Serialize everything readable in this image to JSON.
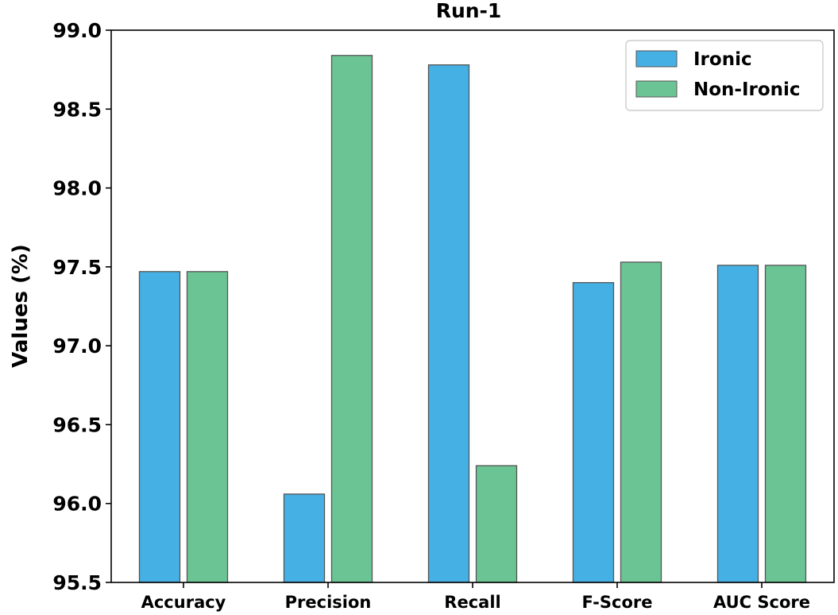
{
  "chart_data": {
    "type": "bar",
    "title": "Run-1",
    "xlabel": "",
    "ylabel": "Values (%)",
    "categories": [
      "Accuracy",
      "Precision",
      "Recall",
      "F-Score",
      "AUC Score"
    ],
    "series": [
      {
        "name": "Ironic",
        "color": "#45b0e3",
        "values": [
          97.47,
          96.06,
          98.78,
          97.4,
          97.51
        ]
      },
      {
        "name": "Non-Ironic",
        "color": "#6bc494",
        "values": [
          97.47,
          98.84,
          96.24,
          97.53,
          97.51
        ]
      }
    ],
    "ylim": [
      95.5,
      99.0
    ],
    "yticks": [
      "95.5",
      "96.0",
      "96.5",
      "97.0",
      "97.5",
      "98.0",
      "98.5",
      "99.0"
    ],
    "grid": false,
    "legend_position": "top-right"
  }
}
